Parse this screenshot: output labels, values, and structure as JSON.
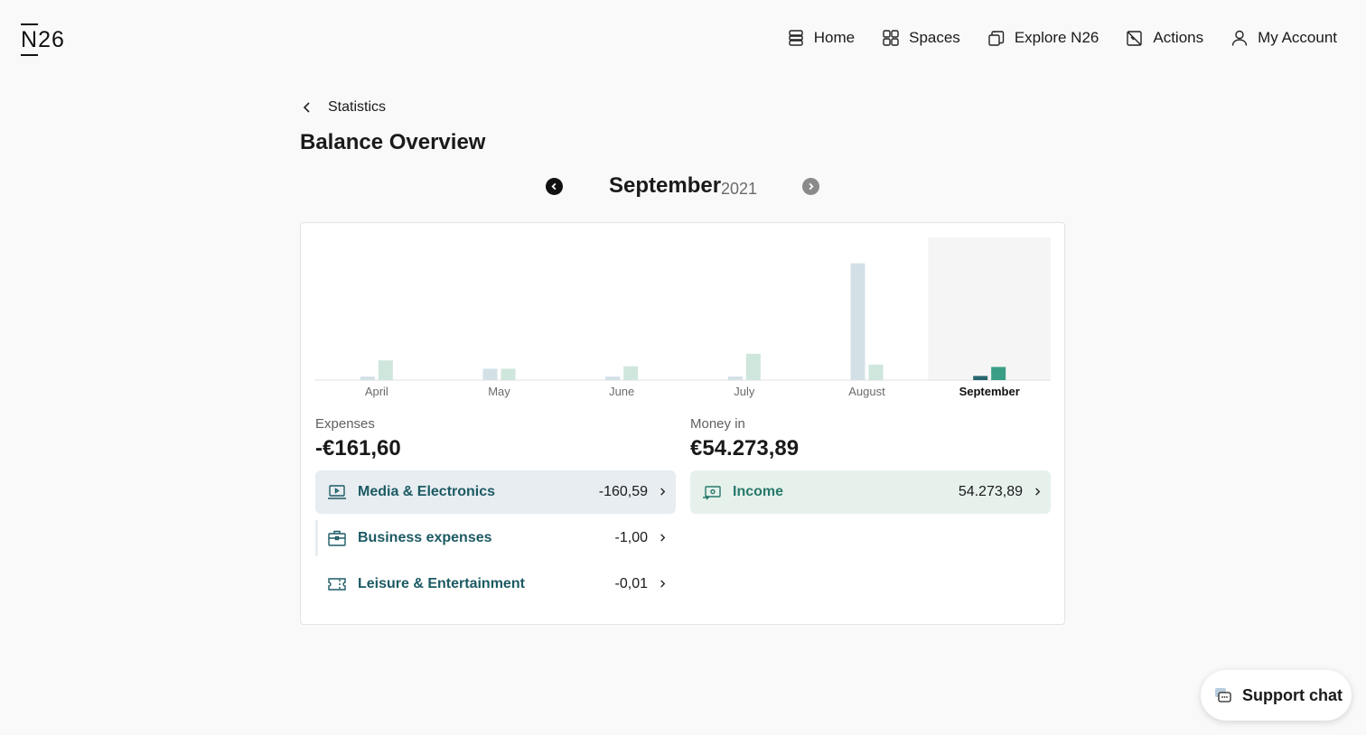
{
  "brand": {
    "logo_n": "N",
    "logo_rest": "26"
  },
  "nav": {
    "home": "Home",
    "spaces": "Spaces",
    "explore": "Explore N26",
    "actions": "Actions",
    "account": "My Account"
  },
  "breadcrumb": {
    "label": "Statistics"
  },
  "page_title": "Balance Overview",
  "period": {
    "month": "September",
    "year": "2021"
  },
  "colors": {
    "expense_bar": "#d3e1e7",
    "income_bar": "#cfe6dc",
    "expense_bar_selected": "#2a6670",
    "income_bar_selected": "#3a9e86",
    "selected_bg": "#f5f5f5",
    "accent_text": "#1c5a63"
  },
  "chart_data": {
    "type": "bar",
    "categories": [
      "April",
      "May",
      "June",
      "July",
      "August",
      "September"
    ],
    "selected": "September",
    "series": [
      {
        "values": [
          600,
          1900,
          600,
          600,
          19500,
          700
        ]
      },
      {
        "values": [
          3300,
          1900,
          2300,
          4400,
          2600,
          2200
        ]
      }
    ],
    "ylim": [
      0,
      22000
    ],
    "grid": false,
    "legend": "none"
  },
  "expenses": {
    "label": "Expenses",
    "total": "-€161,60",
    "items": [
      {
        "label": "Media & Electronics",
        "amount": "-160,59",
        "icon": "laptop-icon"
      },
      {
        "label": "Business expenses",
        "amount": "-1,00",
        "icon": "briefcase-icon"
      },
      {
        "label": "Leisure & Entertainment",
        "amount": "-0,01",
        "icon": "ticket-icon"
      }
    ]
  },
  "income": {
    "label": "Money in",
    "total": "€54.273,89",
    "items": [
      {
        "label": "Income",
        "amount": "54.273,89",
        "icon": "money-in-icon"
      }
    ]
  },
  "support": {
    "label": "Support chat"
  }
}
